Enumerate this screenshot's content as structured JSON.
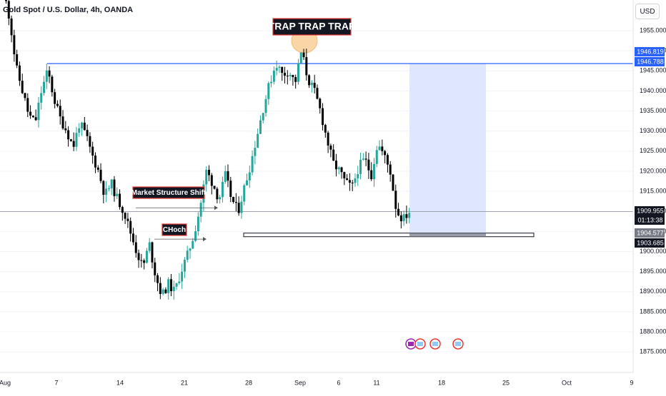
{
  "header": {
    "symbol_title": "Gold Spot / U.S. Dollar, 4h, OANDA",
    "currency": "USD"
  },
  "colors": {
    "up": "#26a69a",
    "down": "#000000",
    "level_line": "#2962ff",
    "target_zone": "#dbe4ff",
    "price_badge_blue": "#2962ff",
    "price_badge_dark": "#131722",
    "price_badge_gray": "#787b86",
    "trap_circle": "#f9c98a",
    "label_bg": "#131722",
    "label_border": "#e53935"
  },
  "annotations": {
    "trap": "TRAP TRAP TRAP",
    "mss": "Market Structure Shift",
    "choch": "CHoch"
  },
  "price_labels": {
    "blue_top": "1946.819",
    "blue_bottom": "1946.788",
    "current": "1909.955",
    "countdown": "01:13:38",
    "gray": "1904.577",
    "dark": "1903.685"
  },
  "chart_data": {
    "type": "candlestick",
    "title": "Gold Spot / U.S. Dollar, 4h, OANDA",
    "yaxis": {
      "range": [
        1874,
        1963
      ],
      "ticks": [
        "1955.000",
        "1950.000",
        "1945.000",
        "1940.000",
        "1935.000",
        "1930.000",
        "1925.000",
        "1920.000",
        "1915.000",
        "1910.000",
        "1905.000",
        "1900.000",
        "1895.000",
        "1890.000",
        "1885.000",
        "1880.000",
        "1875.000"
      ]
    },
    "xaxis": {
      "ticks": [
        "Aug",
        "7",
        "14",
        "21",
        "28",
        "Sep",
        "6",
        "11",
        "18",
        "25",
        "Oct",
        "9"
      ]
    },
    "key_levels": {
      "resistance": 1946.8,
      "current": 1909.955,
      "demand_zone": [
        1903.685,
        1904.577
      ]
    },
    "swing_path": [
      1965,
      1958,
      1946,
      1940,
      1934,
      1932,
      1940,
      1945,
      1938,
      1933,
      1930,
      1926,
      1932,
      1929,
      1924,
      1920,
      1914,
      1917,
      1913,
      1910,
      1905,
      1900,
      1896,
      1902,
      1894,
      1889,
      1892,
      1890,
      1895,
      1899,
      1904,
      1911,
      1920,
      1917,
      1913,
      1919,
      1913,
      1910,
      1916,
      1922,
      1929,
      1936,
      1942,
      1947,
      1944,
      1945,
      1942,
      1950,
      1943,
      1940,
      1935,
      1928,
      1922,
      1920,
      1917,
      1916,
      1921,
      1923,
      1919,
      1927,
      1924,
      1920,
      1910,
      1908,
      1910
    ]
  }
}
